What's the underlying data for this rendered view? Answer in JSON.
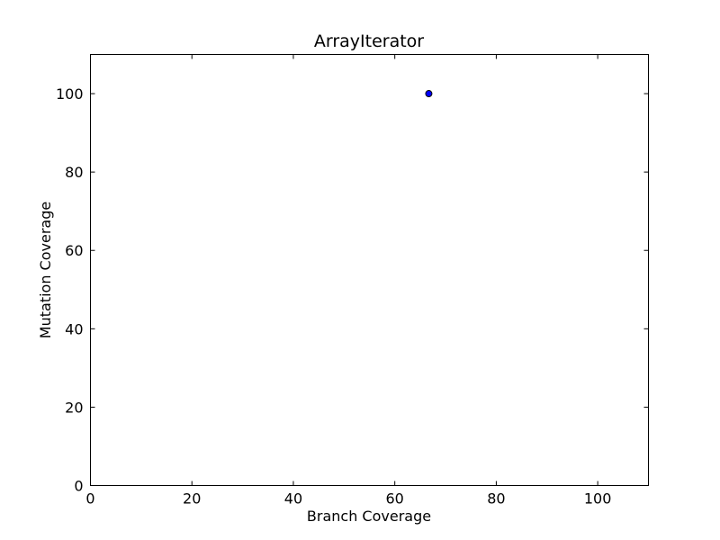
{
  "chart_data": {
    "type": "scatter",
    "title": "ArrayIterator",
    "xlabel": "Branch Coverage",
    "ylabel": "Mutation Coverage",
    "xlim": [
      0,
      110
    ],
    "ylim": [
      0,
      110
    ],
    "xticks": [
      0,
      20,
      40,
      60,
      80,
      100
    ],
    "yticks": [
      0,
      20,
      40,
      60,
      80,
      100
    ],
    "grid": false,
    "legend": "none",
    "series": [
      {
        "points": [
          {
            "x": 66.7,
            "y": 100
          }
        ],
        "color": "#0000ff",
        "edge_color": "#000000"
      }
    ]
  }
}
